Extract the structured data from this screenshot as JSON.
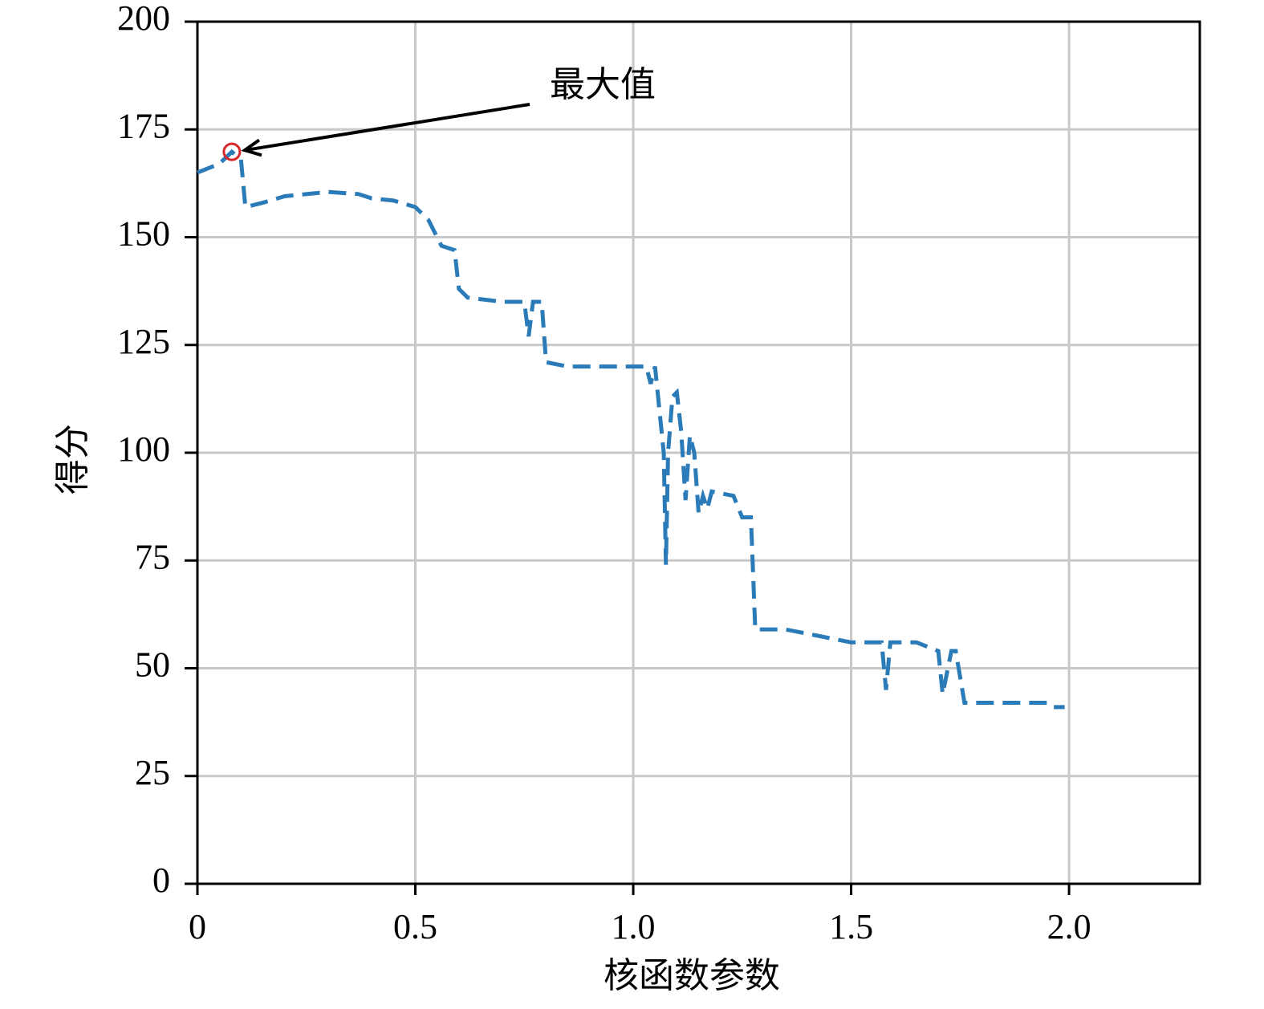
{
  "chart_data": {
    "type": "line",
    "xlabel": "核函数参数",
    "ylabel": "得分",
    "x": [
      0,
      0.05,
      0.079,
      0.1,
      0.11,
      0.15,
      0.2,
      0.3,
      0.37,
      0.4,
      0.45,
      0.5,
      0.53,
      0.56,
      0.59,
      0.6,
      0.62,
      0.7,
      0.75,
      0.76,
      0.77,
      0.79,
      0.8,
      0.85,
      1.0,
      1.03,
      1.04,
      1.05,
      1.06,
      1.07,
      1.075,
      1.08,
      1.09,
      1.1,
      1.11,
      1.12,
      1.13,
      1.14,
      1.15,
      1.16,
      1.17,
      1.18,
      1.23,
      1.25,
      1.27,
      1.28,
      1.35,
      1.4,
      1.5,
      1.57,
      1.58,
      1.59,
      1.65,
      1.7,
      1.71,
      1.73,
      1.74,
      1.76,
      1.8,
      1.95,
      1.96,
      1.99
    ],
    "series": [
      {
        "color": "#2b7bb9",
        "values": [
          165,
          167,
          169.8,
          168,
          157,
          158,
          159.5,
          160.5,
          160,
          159,
          158.5,
          157,
          154,
          148,
          147,
          138,
          136,
          135,
          135,
          127,
          135,
          135,
          121,
          120,
          120,
          120,
          116,
          120,
          110,
          100,
          74,
          100,
          113,
          114,
          105,
          89,
          104,
          100,
          86,
          90,
          87,
          91,
          90,
          85,
          85,
          59,
          59,
          58,
          56,
          56,
          45,
          56,
          56,
          54,
          44,
          54,
          54,
          42,
          42,
          42,
          41,
          41
        ]
      }
    ],
    "annotation": {
      "text": "最大值",
      "x": 0.079,
      "y": 169.8,
      "color": "#d62728"
    },
    "xlim": [
      0,
      2.3
    ],
    "ylim": [
      0,
      200
    ],
    "xticks": [
      0,
      0.5,
      {
        "value": 1,
        "label": "1.0"
      },
      1.5,
      {
        "value": 2,
        "label": "2.0"
      }
    ],
    "yticks": [
      0,
      25,
      50,
      75,
      100,
      125,
      150,
      175,
      200
    ],
    "grid": true
  }
}
